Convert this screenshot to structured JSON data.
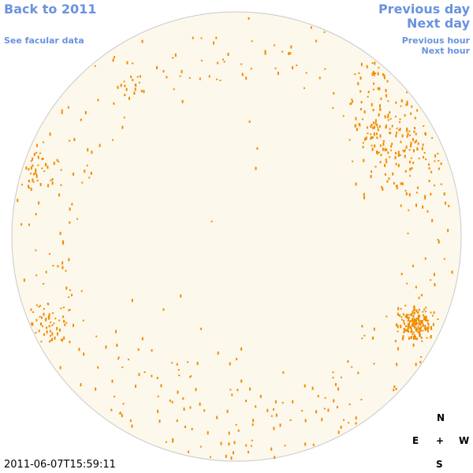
{
  "navigation": {
    "back": "Back to 2011",
    "facular_data": "See facular data",
    "previous_day": "Previous day",
    "next_day": "Next day",
    "previous_hour": "Previous hour",
    "next_hour": "Next hour"
  },
  "timestamp": "2011-06-07T15:59:11",
  "compass": {
    "north": "N",
    "east": "E",
    "center": "+",
    "west": "W",
    "south": "S"
  }
}
